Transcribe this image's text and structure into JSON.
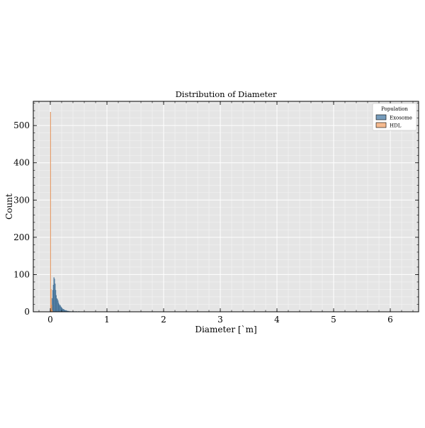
{
  "chart_data": {
    "type": "bar",
    "subtype": "histogram",
    "title": "Distribution of Diameter",
    "xlabel": "Diameter [`m]",
    "ylabel": "Count",
    "xlim": [
      -0.3,
      6.5
    ],
    "ylim": [
      0,
      565
    ],
    "xticks": [
      0,
      1,
      2,
      3,
      4,
      5,
      6
    ],
    "yticks": [
      0,
      100,
      200,
      300,
      400,
      500
    ],
    "grid": true,
    "legend": {
      "title": "Population",
      "position": "top-right",
      "entries": [
        "Exosome",
        "HDL"
      ]
    },
    "bin_width": 0.01,
    "series": [
      {
        "name": "Exosome",
        "color": "#4a7ca6",
        "edge_color": "#3d6a8f",
        "bin_starts": [
          0.01,
          0.02,
          0.03,
          0.04,
          0.05,
          0.06,
          0.07,
          0.08,
          0.09,
          0.1,
          0.11,
          0.12,
          0.13,
          0.14,
          0.15,
          0.16,
          0.17,
          0.18,
          0.19,
          0.2,
          0.21,
          0.22,
          0.23,
          0.24,
          0.25,
          0.26,
          0.27,
          0.28,
          0.29,
          0.3,
          0.31,
          0.32,
          0.33,
          0.35,
          0.38,
          0.41,
          0.45,
          0.5
        ],
        "values": [
          4,
          12,
          36,
          58,
          72,
          92,
          88,
          75,
          58,
          44,
          36,
          34,
          30,
          24,
          20,
          16,
          18,
          14,
          12,
          10,
          8,
          6,
          7,
          5,
          4,
          3,
          4,
          3,
          2,
          2,
          1,
          2,
          1,
          1,
          1,
          1,
          1,
          1
        ]
      },
      {
        "name": "HDL",
        "color": "#f2a36a",
        "edge_color": "#d98b52",
        "bin_starts": [
          0.0,
          0.01,
          0.02,
          0.03
        ],
        "values": [
          536,
          60,
          18,
          4
        ]
      }
    ]
  }
}
